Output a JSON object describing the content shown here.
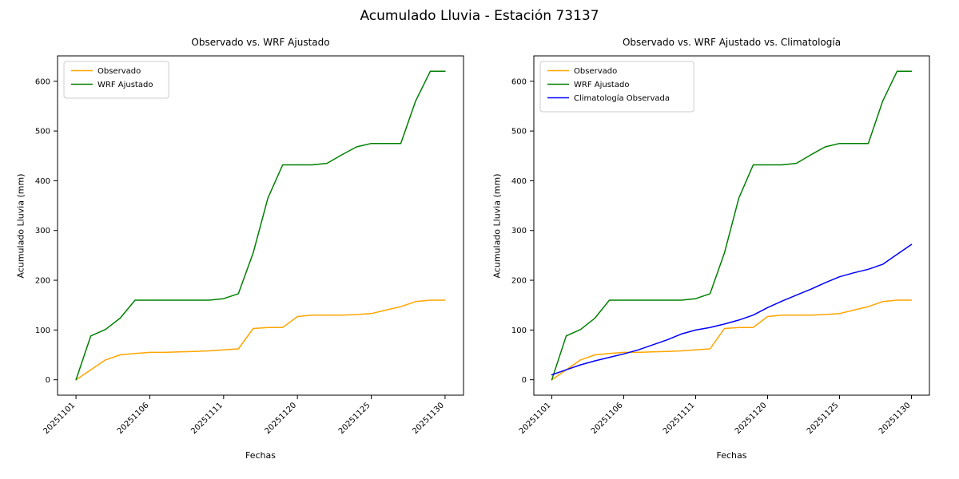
{
  "figure": {
    "suptitle": "Acumulado Lluvia - Estación 73137"
  },
  "chart_data": [
    {
      "type": "line",
      "title": "Observado vs. WRF Ajustado",
      "xlabel": "Fechas",
      "ylabel": "Acumulado Lluvia (mm)",
      "ylim": [
        -31,
        651
      ],
      "yticks": [
        0,
        100,
        200,
        300,
        400,
        500,
        600
      ],
      "n_points": 26,
      "x_tick_indices": [
        0,
        5,
        10,
        15,
        20,
        25
      ],
      "x_tick_labels": [
        "20251101",
        "20251106",
        "20251111",
        "20251120",
        "20251125",
        "20251130"
      ],
      "grid": false,
      "legend_position": "upper left",
      "series": [
        {
          "name": "Observado",
          "color": "#ffa500",
          "values": [
            0,
            20,
            40,
            50,
            53,
            55,
            55,
            56,
            57,
            58,
            60,
            62,
            103,
            105,
            105,
            127,
            130,
            130,
            130,
            131,
            133,
            140,
            147,
            157,
            160,
            160
          ]
        },
        {
          "name": "WRF Ajustado",
          "color": "#008000",
          "values": [
            0,
            88,
            101,
            124,
            160,
            160,
            160,
            160,
            160,
            160,
            163,
            173,
            255,
            365,
            432,
            432,
            432,
            435,
            452,
            468,
            475,
            475,
            475,
            560,
            620,
            620
          ]
        }
      ]
    },
    {
      "type": "line",
      "title": "Observado vs. WRF Ajustado vs. Climatología",
      "xlabel": "Fechas",
      "ylabel": "Acumulado Lluvia (mm)",
      "ylim": [
        -31,
        651
      ],
      "yticks": [
        0,
        100,
        200,
        300,
        400,
        500,
        600
      ],
      "n_points": 26,
      "x_tick_indices": [
        0,
        5,
        10,
        15,
        20,
        25
      ],
      "x_tick_labels": [
        "20251101",
        "20251106",
        "20251111",
        "20251120",
        "20251125",
        "20251130"
      ],
      "grid": false,
      "legend_position": "upper left",
      "series": [
        {
          "name": "Observado",
          "color": "#ffa500",
          "values": [
            0,
            20,
            40,
            50,
            53,
            55,
            55,
            56,
            57,
            58,
            60,
            62,
            103,
            105,
            105,
            127,
            130,
            130,
            130,
            131,
            133,
            140,
            147,
            157,
            160,
            160
          ]
        },
        {
          "name": "WRF Ajustado",
          "color": "#008000",
          "values": [
            0,
            88,
            101,
            124,
            160,
            160,
            160,
            160,
            160,
            160,
            163,
            173,
            255,
            365,
            432,
            432,
            432,
            435,
            452,
            468,
            475,
            475,
            475,
            560,
            620,
            620
          ]
        },
        {
          "name": "Climatología Observada",
          "color": "#0000ff",
          "values": [
            10,
            20,
            30,
            38,
            45,
            52,
            60,
            70,
            80,
            92,
            100,
            105,
            112,
            120,
            130,
            145,
            158,
            170,
            182,
            195,
            207,
            215,
            222,
            232,
            252,
            272
          ]
        }
      ]
    }
  ]
}
